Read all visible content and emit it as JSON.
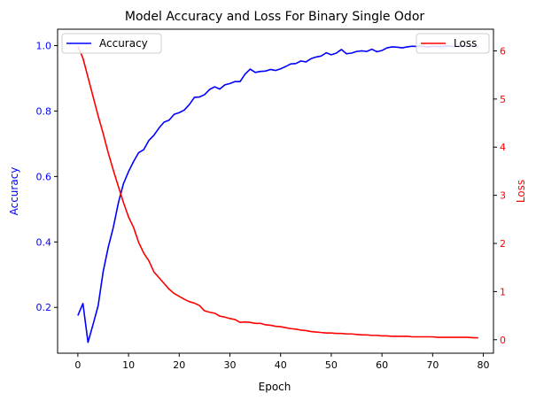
{
  "chart_data": {
    "type": "line",
    "title": "Model Accuracy and Loss For Binary Single Odor",
    "xlabel": "Epoch",
    "ylabel_left": "Accuracy",
    "ylabel_right": "Loss",
    "xlim": [
      -4,
      82
    ],
    "ylim_left": [
      0.06,
      1.05
    ],
    "ylim_right": [
      -0.28,
      6.45
    ],
    "x_ticks": [
      0,
      10,
      20,
      30,
      40,
      50,
      60,
      70,
      80
    ],
    "y_left_ticks": [
      0.2,
      0.4,
      0.6,
      0.8,
      1.0
    ],
    "y_right_ticks": [
      0,
      1,
      2,
      3,
      4,
      5,
      6
    ],
    "x_tick_labels": [
      "0",
      "10",
      "20",
      "30",
      "40",
      "50",
      "60",
      "70",
      "80"
    ],
    "y_left_tick_labels": [
      "0.2",
      "0.4",
      "0.6",
      "0.8",
      "1.0"
    ],
    "y_right_tick_labels": [
      "0",
      "1",
      "2",
      "3",
      "4",
      "5",
      "6"
    ],
    "grid": false,
    "series": [
      {
        "name": "Accuracy",
        "axis": "left",
        "color": "#0000ff",
        "legend_position": "upper-left",
        "x": [
          0,
          1,
          2,
          3,
          4,
          5,
          6,
          7,
          8,
          9,
          10,
          11,
          12,
          13,
          14,
          15,
          16,
          17,
          18,
          19,
          20,
          21,
          22,
          23,
          24,
          25,
          26,
          27,
          28,
          29,
          30,
          31,
          32,
          33,
          34,
          35,
          36,
          37,
          38,
          39,
          40,
          41,
          42,
          43,
          44,
          45,
          46,
          47,
          48,
          49,
          50,
          51,
          52,
          53,
          54,
          55,
          56,
          57,
          58,
          59,
          60,
          61,
          62,
          63,
          64,
          65,
          66,
          67,
          68,
          69,
          70,
          71,
          72,
          73,
          74,
          75,
          76,
          77,
          78,
          79
        ],
        "y": [
          0.175,
          0.212,
          0.093,
          0.148,
          0.205,
          0.31,
          0.384,
          0.445,
          0.52,
          0.578,
          0.615,
          0.646,
          0.673,
          0.682,
          0.71,
          0.726,
          0.748,
          0.766,
          0.772,
          0.79,
          0.795,
          0.803,
          0.82,
          0.842,
          0.843,
          0.85,
          0.866,
          0.874,
          0.867,
          0.88,
          0.884,
          0.89,
          0.89,
          0.913,
          0.928,
          0.918,
          0.921,
          0.922,
          0.927,
          0.924,
          0.929,
          0.936,
          0.944,
          0.945,
          0.953,
          0.95,
          0.96,
          0.965,
          0.968,
          0.978,
          0.972,
          0.977,
          0.988,
          0.975,
          0.977,
          0.982,
          0.984,
          0.982,
          0.989,
          0.981,
          0.985,
          0.993,
          0.996,
          0.995,
          0.993,
          0.996,
          0.998,
          0.997,
          0.998,
          0.995,
          0.998,
          0.997,
          0.998,
          0.999,
          0.997,
          0.998,
          0.999,
          0.998,
          0.999,
          0.998
        ]
      },
      {
        "name": "Loss",
        "axis": "right",
        "color": "#ff0000",
        "legend_position": "upper-right",
        "x": [
          0,
          1,
          2,
          3,
          4,
          5,
          6,
          7,
          8,
          9,
          10,
          11,
          12,
          13,
          14,
          15,
          16,
          17,
          18,
          19,
          20,
          21,
          22,
          23,
          24,
          25,
          26,
          27,
          28,
          29,
          30,
          31,
          32,
          33,
          34,
          35,
          36,
          37,
          38,
          39,
          40,
          41,
          42,
          43,
          44,
          45,
          46,
          47,
          48,
          49,
          50,
          51,
          52,
          53,
          54,
          55,
          56,
          57,
          58,
          59,
          60,
          61,
          62,
          63,
          64,
          65,
          66,
          67,
          68,
          69,
          70,
          71,
          72,
          73,
          74,
          75,
          76,
          77,
          78,
          79
        ],
        "y": [
          6.1,
          5.85,
          5.45,
          5.05,
          4.65,
          4.28,
          3.88,
          3.52,
          3.18,
          2.85,
          2.55,
          2.33,
          2.02,
          1.8,
          1.64,
          1.41,
          1.29,
          1.17,
          1.05,
          0.96,
          0.9,
          0.84,
          0.79,
          0.76,
          0.71,
          0.6,
          0.57,
          0.55,
          0.49,
          0.47,
          0.44,
          0.42,
          0.36,
          0.37,
          0.36,
          0.34,
          0.34,
          0.31,
          0.3,
          0.28,
          0.27,
          0.25,
          0.23,
          0.22,
          0.2,
          0.19,
          0.17,
          0.16,
          0.15,
          0.14,
          0.14,
          0.13,
          0.13,
          0.12,
          0.12,
          0.11,
          0.1,
          0.1,
          0.09,
          0.09,
          0.08,
          0.08,
          0.07,
          0.07,
          0.07,
          0.07,
          0.06,
          0.06,
          0.06,
          0.06,
          0.06,
          0.05,
          0.05,
          0.05,
          0.05,
          0.05,
          0.05,
          0.05,
          0.04,
          0.04
        ]
      }
    ]
  }
}
